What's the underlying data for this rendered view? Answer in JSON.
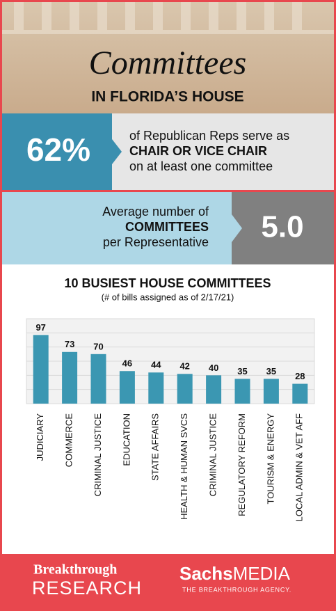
{
  "header": {
    "title": "Committees",
    "subtitle": "IN FLORIDA’S HOUSE"
  },
  "stats": [
    {
      "value": "62%",
      "lines": [
        "of Republican Reps serve as",
        "CHAIR OR VICE CHAIR",
        "on at least one committee"
      ]
    },
    {
      "value": "5.0",
      "lines": [
        "Average number of",
        "COMMITTEES",
        "per Representative"
      ]
    }
  ],
  "chart_data": {
    "type": "bar",
    "title": "10 BUSIEST HOUSE COMMITTEES",
    "subtitle": "(# of bills assigned as of 2/17/21)",
    "categories": [
      "JUDICIARY",
      "COMMERCE",
      "CRIMINAL JUSTICE",
      "EDUCATION",
      "STATE AFFAIRS",
      "HEALTH & HUMAN SVCS",
      "CRIMINAL JUSTICE",
      "REGULATORY REFORM",
      "TOURISM & ENERGY",
      "LOCAL ADMIN & VET AFF"
    ],
    "values": [
      97,
      73,
      70,
      46,
      44,
      42,
      40,
      35,
      35,
      28
    ],
    "color": "#3b97b2",
    "ylim": [
      0,
      120
    ],
    "yticks": [
      0,
      20,
      40,
      60,
      80,
      100,
      120
    ],
    "grid": true
  },
  "footer": {
    "left": [
      "Breakthrough",
      "RESEARCH"
    ],
    "right": [
      "Sachs",
      "MEDIA",
      "THE BREAKTHROUGH AGENCY."
    ]
  }
}
